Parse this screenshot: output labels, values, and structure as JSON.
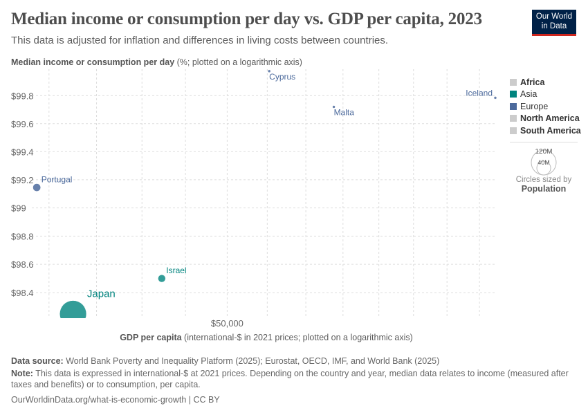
{
  "title": "Median income or consumption per day vs. GDP per capita, 2023",
  "subtitle": "This data is adjusted for inflation and differences in living costs between countries.",
  "logo": {
    "line1": "Our World",
    "line2": "in Data",
    "bg": "#002147",
    "accent": "#ce261e"
  },
  "chart_data": {
    "type": "scatter",
    "title": "Median income or consumption per day vs. GDP per capita, 2023",
    "ylabel_bold": "Median income or consumption per day",
    "ylabel_rest": " (%; plotted on a logarithmic axis)",
    "xlabel_bold": "GDP per capita",
    "xlabel_rest": " (international-$ in 2021 prices; plotted on a logarithmic axis)",
    "x_scale": "log",
    "y_scale": "log",
    "xlim": [
      41300,
      65000
    ],
    "ylim": [
      98.22,
      99.99
    ],
    "x_gridlines": [
      42000,
      44000,
      46000,
      48000,
      50000,
      52000,
      54000,
      56000,
      58000,
      60000,
      62000,
      64000
    ],
    "x_ticks": [
      {
        "value": 50000,
        "label": "$50,000"
      }
    ],
    "y_ticks": [
      {
        "value": 99.8,
        "label": "$99.8"
      },
      {
        "value": 99.6,
        "label": "$99.6"
      },
      {
        "value": 99.4,
        "label": "$99.4"
      },
      {
        "value": 99.2,
        "label": "$99.2"
      },
      {
        "value": 99.0,
        "label": "$99"
      },
      {
        "value": 98.8,
        "label": "$98.8"
      },
      {
        "value": 98.6,
        "label": "$98.6"
      },
      {
        "value": 98.4,
        "label": "$98.4"
      }
    ],
    "grid": true,
    "points": [
      {
        "name": "Cyprus",
        "region": "Europe",
        "x": 52100,
        "y": 99.976,
        "population": 1300000
      },
      {
        "name": "Malta",
        "region": "Europe",
        "x": 55500,
        "y": 99.72,
        "population": 530000
      },
      {
        "name": "Iceland",
        "region": "Europe",
        "x": 65000,
        "y": 99.785,
        "population": 390000
      },
      {
        "name": "Portugal",
        "region": "Europe",
        "x": 41500,
        "y": 99.145,
        "population": 10500000
      },
      {
        "name": "Israel",
        "region": "Asia",
        "x": 46900,
        "y": 98.5,
        "population": 9700000
      },
      {
        "name": "Japan",
        "region": "Asia",
        "x": 43000,
        "y": 98.25,
        "population": 124000000
      }
    ],
    "legend_position": "right",
    "legend": [
      {
        "label": "Africa",
        "color": "#cccccc",
        "active": false
      },
      {
        "label": "Asia",
        "color": "#00847e",
        "active": true
      },
      {
        "label": "Europe",
        "color": "#4c6a9c",
        "active": true
      },
      {
        "label": "North America",
        "color": "#cccccc",
        "active": false
      },
      {
        "label": "South America",
        "color": "#cccccc",
        "active": false
      }
    ],
    "size_legend": {
      "values": [
        {
          "value": 120000000,
          "label": "120M"
        },
        {
          "value": 40000000,
          "label": "40M"
        }
      ],
      "caption": "Circles sized by",
      "variable": "Population"
    }
  },
  "footer": {
    "source_label": "Data source:",
    "source": " World Bank Poverty and Inequality Platform (2025); Eurostat, OECD, IMF, and World Bank (2025)",
    "note_label": "Note:",
    "note": " This data is expressed in international-$ at 2021 prices. Depending on the country and year, median data relates to income (measured after taxes and benefits) or to consumption, per capita.",
    "url": "OurWorldinData.org/what-is-economic-growth | CC BY"
  }
}
